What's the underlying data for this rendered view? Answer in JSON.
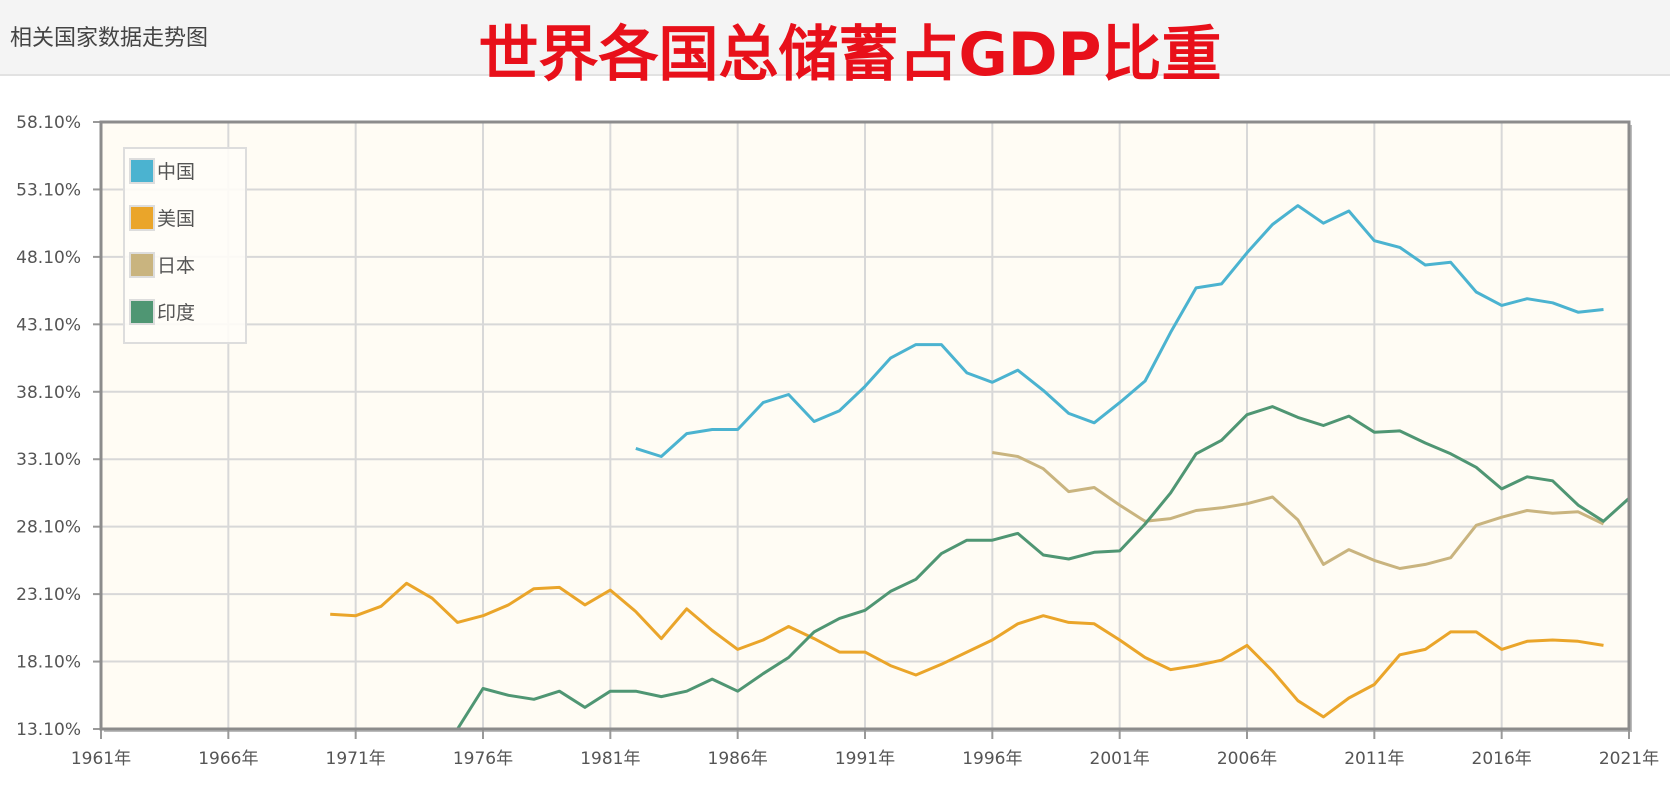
{
  "header": {
    "panel_title": "相关国家数据走势图",
    "main_title": "世界各国总储蓄占GDP比重"
  },
  "chart_data": {
    "type": "line",
    "title": "世界各国总储蓄占GDP比重",
    "xlabel": "",
    "ylabel": "",
    "xlim": [
      1961,
      2021
    ],
    "ylim": [
      13.1,
      58.1
    ],
    "x_ticks": [
      "1961年",
      "1966年",
      "1971年",
      "1976年",
      "1981年",
      "1986年",
      "1991年",
      "1996年",
      "2001年",
      "2006年",
      "2011年",
      "2016年",
      "2021年"
    ],
    "y_ticks": [
      "58.10%",
      "53.10%",
      "48.10%",
      "43.10%",
      "38.10%",
      "33.10%",
      "28.10%",
      "23.10%",
      "18.10%",
      "13.10%"
    ],
    "grid": true,
    "legend_position": "top-left",
    "series": [
      {
        "name": "中国",
        "color": "#4bb3d0",
        "start_year": 1982,
        "values": [
          33.9,
          33.3,
          35.0,
          35.3,
          35.3,
          37.3,
          37.9,
          35.9,
          36.7,
          38.5,
          40.6,
          41.6,
          41.6,
          39.5,
          38.8,
          39.7,
          38.2,
          36.5,
          35.8,
          37.3,
          38.9,
          42.5,
          45.8,
          46.1,
          48.4,
          50.5,
          51.9,
          50.6,
          51.5,
          49.3,
          48.8,
          47.5,
          47.7,
          45.5,
          44.5,
          45.0,
          44.7,
          44.0,
          44.2
        ]
      },
      {
        "name": "美国",
        "color": "#eaa52a",
        "start_year": 1970,
        "values": [
          21.6,
          21.5,
          22.2,
          23.9,
          22.8,
          21.0,
          21.5,
          22.3,
          23.5,
          23.6,
          22.3,
          23.4,
          21.8,
          19.8,
          22.0,
          20.4,
          19.0,
          19.7,
          20.7,
          19.8,
          18.8,
          18.8,
          17.8,
          17.1,
          17.9,
          18.8,
          19.7,
          20.9,
          21.5,
          21.0,
          20.9,
          19.7,
          18.4,
          17.5,
          17.8,
          18.2,
          19.3,
          17.4,
          15.2,
          14.0,
          15.4,
          16.4,
          18.6,
          19.0,
          20.3,
          20.3,
          19.0,
          19.6,
          19.7,
          19.6,
          19.3
        ]
      },
      {
        "name": "日本",
        "color": "#c9b47f",
        "start_year": 1996,
        "values": [
          33.6,
          33.3,
          32.4,
          30.7,
          31.0,
          29.7,
          28.5,
          28.7,
          29.3,
          29.5,
          29.8,
          30.3,
          28.6,
          25.3,
          26.4,
          25.6,
          25.0,
          25.3,
          25.8,
          28.2,
          28.8,
          29.3,
          29.1,
          29.2,
          28.3
        ]
      },
      {
        "name": "印度",
        "color": "#4f9673",
        "start_year": 1975,
        "values": [
          13.1,
          16.1,
          15.6,
          15.3,
          15.9,
          14.7,
          15.9,
          15.9,
          15.5,
          15.9,
          16.8,
          15.9,
          17.2,
          18.4,
          20.3,
          21.3,
          21.9,
          23.3,
          24.2,
          26.1,
          27.1,
          27.1,
          27.6,
          26.0,
          25.7,
          26.2,
          26.3,
          28.3,
          30.6,
          33.5,
          34.5,
          36.4,
          37.0,
          36.2,
          35.6,
          36.3,
          35.1,
          35.2,
          34.3,
          33.5,
          32.5,
          30.9,
          31.8,
          31.5,
          29.7,
          28.5,
          30.2
        ]
      }
    ]
  }
}
